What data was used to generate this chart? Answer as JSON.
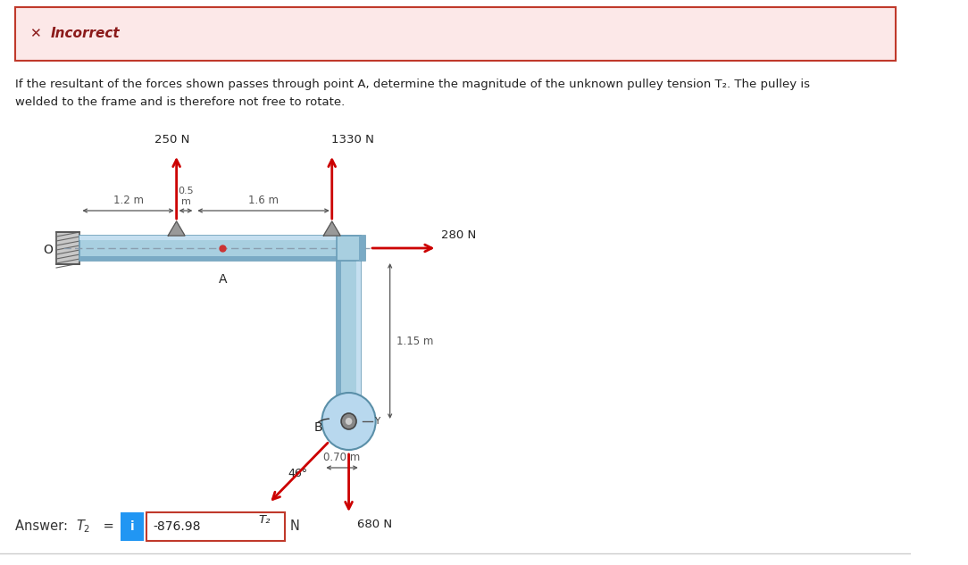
{
  "bg_color": "#ffffff",
  "incorrect_bg": "#fce8e8",
  "incorrect_border": "#c0392b",
  "incorrect_text": "#8b1a1a",
  "title_line1": "If the resultant of the forces shown passes through point A, determine the magnitude of the unknown pulley tension T₂. The pulley is",
  "title_line2": "welded to the frame and is therefore not free to rotate.",
  "answer_value": "-876.98",
  "answer_unit": "N",
  "frame_color": "#a8cfe0",
  "frame_edge": "#6a9db8",
  "frame_dark": "#5a8fa8",
  "force_color": "#cc0000",
  "dim_color": "#555555",
  "forces": {
    "f250": "250 N",
    "f1330": "1330 N",
    "f280": "280 N",
    "f680": "680 N",
    "T2": "T₂",
    "angle": "46°"
  },
  "dims": {
    "d1": "1.2 m",
    "d2": "0.5\nm",
    "d3": "1.6 m",
    "d4": "1.15 m",
    "d5": "0.70 m"
  }
}
